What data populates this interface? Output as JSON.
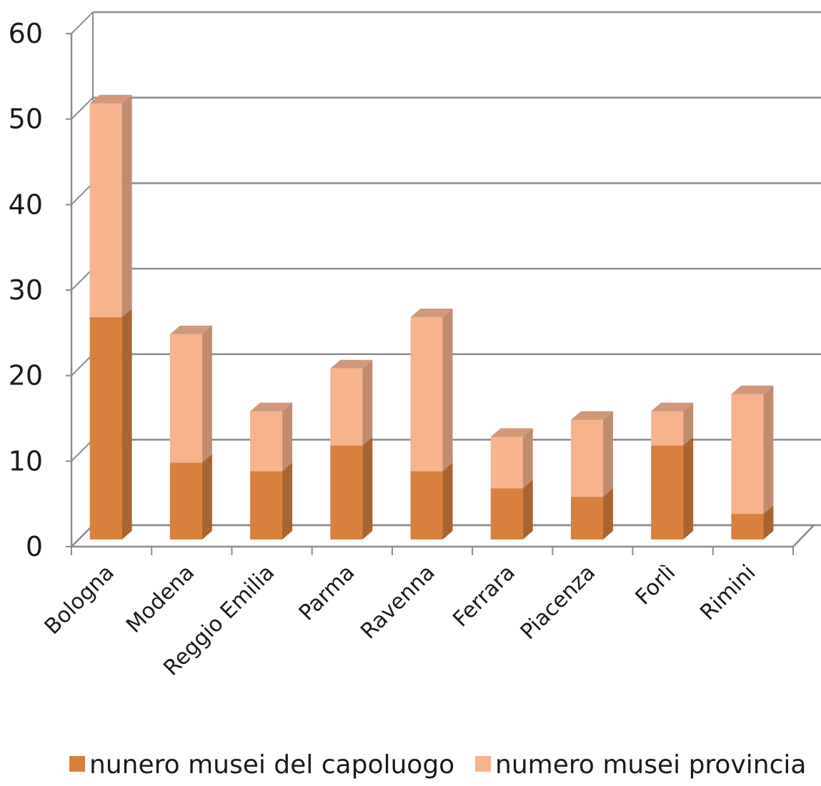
{
  "chart_data": {
    "type": "bar",
    "stacked": true,
    "three_d": true,
    "categories": [
      "Bologna",
      "Modena",
      "Reggio Emilia",
      "Parma",
      "Ravenna",
      "Ferrara",
      "Piacenza",
      "Forlì",
      "Rimini"
    ],
    "series": [
      {
        "name": "nunero musei del capoluogo",
        "values": [
          26,
          9,
          8,
          11,
          8,
          6,
          5,
          11,
          3
        ],
        "color": "#d9803f"
      },
      {
        "name": "numero musei provincia",
        "values": [
          25,
          15,
          7,
          9,
          18,
          6,
          9,
          4,
          14
        ],
        "color": "#f6b38e"
      }
    ],
    "yticks": [
      0,
      10,
      20,
      30,
      40,
      50,
      60
    ],
    "ylim": [
      0,
      60
    ],
    "title": "",
    "xlabel": "",
    "ylabel": "",
    "grid": true,
    "legend_position": "bottom"
  }
}
